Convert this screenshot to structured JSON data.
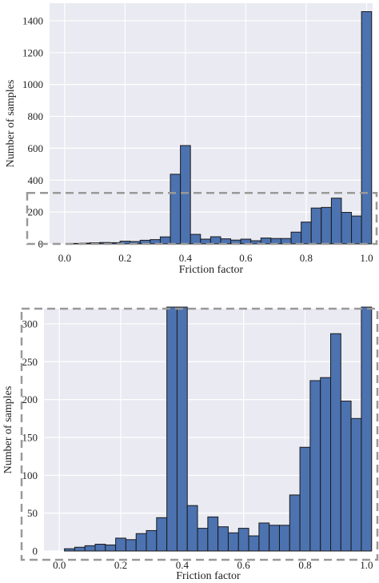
{
  "colors": {
    "bar_fill": "#4C72B0",
    "bar_edge": "#1a1a1a",
    "plot_background": "#EAEAF2",
    "grid": "#ffffff",
    "zoom_box": "#999999"
  },
  "chart_data": [
    {
      "type": "bar",
      "xlabel": "Friction factor",
      "ylabel": "Number of samples",
      "xlim": [
        -0.05,
        1.02
      ],
      "ylim": [
        0,
        1510
      ],
      "xticks": [
        "0.0",
        "0.2",
        "0.4",
        "0.6",
        "0.8",
        "1.0"
      ],
      "yticks": [
        "0",
        "200",
        "400",
        "600",
        "800",
        "1000",
        "1200",
        "1400"
      ],
      "grid": true,
      "bin_width": 0.0333,
      "bin_centers": [
        0.0333,
        0.0667,
        0.1,
        0.1333,
        0.1667,
        0.2,
        0.2333,
        0.2667,
        0.3,
        0.3333,
        0.3667,
        0.4,
        0.4333,
        0.4667,
        0.5,
        0.5333,
        0.5667,
        0.6,
        0.6333,
        0.6667,
        0.7,
        0.7333,
        0.7667,
        0.8,
        0.8333,
        0.8667,
        0.9,
        0.9333,
        0.9667,
        1.0
      ],
      "values": [
        3,
        5,
        7,
        9,
        8,
        17,
        15,
        23,
        27,
        44,
        437,
        617,
        60,
        30,
        45,
        32,
        24,
        30,
        20,
        37,
        34,
        34,
        74,
        137,
        225,
        229,
        287,
        198,
        175,
        1457
      ],
      "zoom_region_y": 320
    },
    {
      "type": "bar",
      "xlabel": "Friction factor",
      "ylabel": "Number of samples",
      "xlim": [
        -0.05,
        1.02
      ],
      "ylim": [
        0,
        320
      ],
      "xticks": [
        "0.0",
        "0.2",
        "0.4",
        "0.6",
        "0.8",
        "1.0"
      ],
      "yticks": [
        "0",
        "50",
        "100",
        "150",
        "200",
        "250",
        "300"
      ],
      "grid": true,
      "bin_width": 0.0333,
      "bin_centers": [
        0.0333,
        0.0667,
        0.1,
        0.1333,
        0.1667,
        0.2,
        0.2333,
        0.2667,
        0.3,
        0.3333,
        0.3667,
        0.4,
        0.4333,
        0.4667,
        0.5,
        0.5333,
        0.5667,
        0.6,
        0.6333,
        0.6667,
        0.7,
        0.7333,
        0.7667,
        0.8,
        0.8333,
        0.8667,
        0.9,
        0.9333,
        0.9667,
        1.0
      ],
      "values": [
        3,
        5,
        7,
        9,
        8,
        17,
        15,
        23,
        27,
        44,
        437,
        617,
        60,
        30,
        45,
        32,
        24,
        30,
        20,
        37,
        34,
        34,
        74,
        137,
        225,
        229,
        287,
        198,
        175,
        1457
      ]
    }
  ]
}
